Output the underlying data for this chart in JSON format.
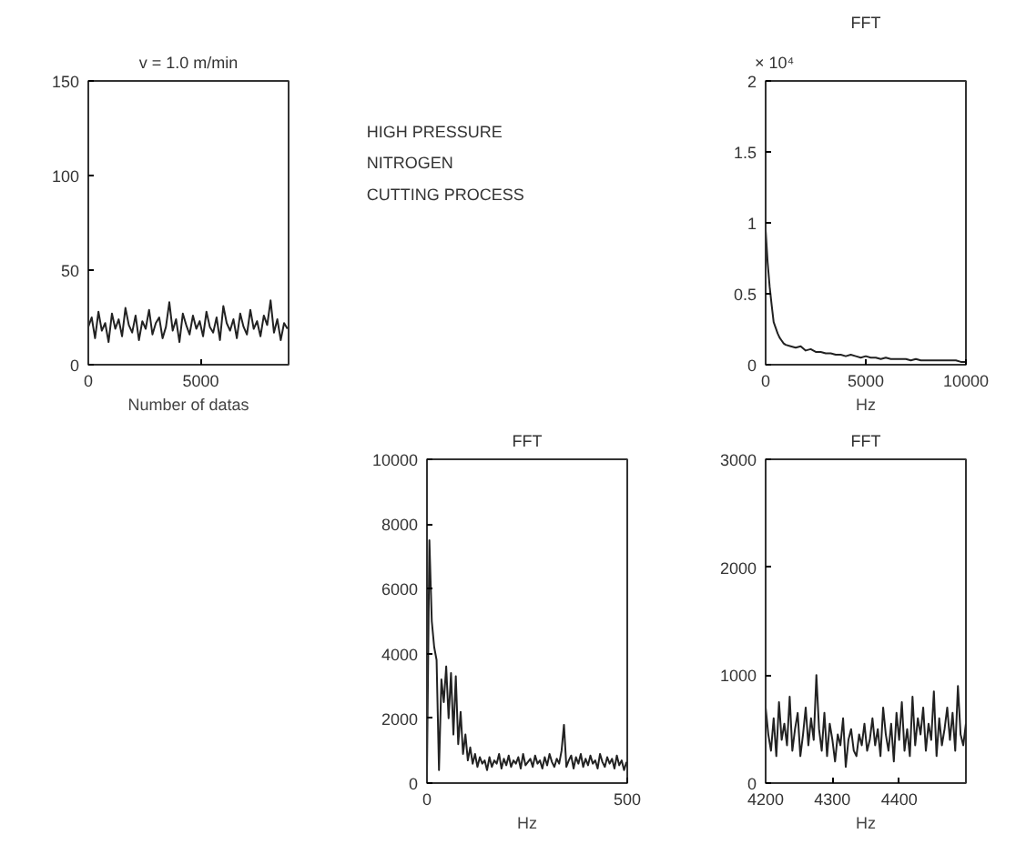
{
  "chart_data": [
    {
      "type": "line",
      "title": "v = 1.0 m/min",
      "xlabel": "Number of datas",
      "color": "#222222",
      "xlim": [
        0,
        8900
      ],
      "xticks": [
        0,
        5000
      ],
      "ylim": [
        0,
        150
      ],
      "yticks": [
        0,
        50,
        100,
        150
      ],
      "x": [
        0,
        150,
        300,
        450,
        600,
        750,
        900,
        1050,
        1200,
        1350,
        1500,
        1650,
        1800,
        1950,
        2100,
        2250,
        2400,
        2550,
        2700,
        2850,
        3000,
        3150,
        3300,
        3450,
        3600,
        3750,
        3900,
        4050,
        4200,
        4350,
        4500,
        4650,
        4800,
        4950,
        5100,
        5250,
        5400,
        5550,
        5700,
        5850,
        6000,
        6150,
        6300,
        6450,
        6600,
        6750,
        6900,
        7050,
        7200,
        7350,
        7500,
        7650,
        7800,
        7950,
        8100,
        8250,
        8400,
        8550,
        8700,
        8850
      ],
      "values": [
        20,
        25,
        14,
        28,
        18,
        22,
        12,
        27,
        19,
        24,
        15,
        30,
        21,
        17,
        26,
        13,
        23,
        19,
        29,
        16,
        22,
        25,
        14,
        20,
        33,
        18,
        24,
        12,
        27,
        21,
        16,
        26,
        19,
        23,
        15,
        28,
        20,
        17,
        25,
        13,
        31,
        22,
        18,
        24,
        14,
        27,
        20,
        16,
        29,
        19,
        23,
        15,
        26,
        21,
        34,
        17,
        24,
        13,
        22,
        19
      ]
    },
    {
      "type": "other",
      "annotations": [
        "HIGH PRESSURE",
        "NITROGEN",
        "CUTTING PROCESS"
      ]
    },
    {
      "type": "line",
      "title": "FFT",
      "xlabel": "Hz",
      "annotations": [
        "× 10⁴"
      ],
      "color": "#222222",
      "xlim": [
        0,
        10000
      ],
      "xticks": [
        0,
        5000,
        10000
      ],
      "ylim": [
        0,
        2
      ],
      "yticks": [
        0,
        0.5,
        1,
        1.5,
        2
      ],
      "x": [
        0,
        100,
        200,
        300,
        400,
        500,
        600,
        700,
        800,
        900,
        1000,
        1250,
        1500,
        1750,
        2000,
        2250,
        2500,
        2750,
        3000,
        3250,
        3500,
        3750,
        4000,
        4250,
        4500,
        4750,
        5000,
        5250,
        5500,
        5750,
        6000,
        6250,
        6500,
        6750,
        7000,
        7250,
        7500,
        7750,
        8000,
        8250,
        8500,
        8750,
        9000,
        9250,
        9500,
        9750,
        10000
      ],
      "values": [
        0.95,
        0.72,
        0.55,
        0.42,
        0.3,
        0.26,
        0.22,
        0.19,
        0.17,
        0.15,
        0.14,
        0.13,
        0.12,
        0.13,
        0.1,
        0.11,
        0.09,
        0.09,
        0.08,
        0.08,
        0.07,
        0.07,
        0.06,
        0.07,
        0.06,
        0.05,
        0.06,
        0.05,
        0.05,
        0.04,
        0.05,
        0.04,
        0.04,
        0.04,
        0.04,
        0.03,
        0.04,
        0.03,
        0.03,
        0.03,
        0.03,
        0.03,
        0.03,
        0.03,
        0.03,
        0.02,
        0.02
      ]
    },
    {
      "type": "line",
      "title": "FFT",
      "xlabel": "Hz",
      "color": "#222222",
      "xlim": [
        0,
        500
      ],
      "xticks": [
        0,
        500
      ],
      "ylim": [
        0,
        10000
      ],
      "yticks": [
        0,
        2000,
        4000,
        6000,
        8000,
        10000
      ],
      "x": [
        0,
        6,
        12,
        18,
        24,
        30,
        36,
        42,
        48,
        54,
        60,
        66,
        72,
        78,
        84,
        90,
        96,
        102,
        108,
        114,
        120,
        126,
        132,
        138,
        144,
        150,
        156,
        162,
        168,
        174,
        180,
        186,
        192,
        198,
        204,
        210,
        216,
        222,
        228,
        234,
        240,
        246,
        252,
        258,
        264,
        270,
        276,
        282,
        288,
        294,
        300,
        306,
        312,
        318,
        324,
        330,
        336,
        342,
        348,
        354,
        360,
        366,
        372,
        378,
        384,
        390,
        396,
        402,
        408,
        414,
        420,
        426,
        432,
        438,
        444,
        450,
        456,
        462,
        468,
        474,
        480,
        486,
        492,
        498
      ],
      "values": [
        300,
        7500,
        5000,
        4200,
        3800,
        400,
        3200,
        2500,
        3600,
        2000,
        3400,
        1500,
        3300,
        1200,
        2200,
        900,
        1500,
        700,
        1100,
        600,
        900,
        500,
        800,
        600,
        700,
        400,
        800,
        500,
        700,
        600,
        900,
        450,
        750,
        550,
        850,
        500,
        700,
        600,
        800,
        450,
        900,
        550,
        650,
        750,
        500,
        850,
        600,
        700,
        450,
        800,
        550,
        900,
        650,
        500,
        750,
        600,
        1000,
        1800,
        500,
        700,
        850,
        450,
        800,
        600,
        900,
        500,
        750,
        550,
        850,
        600,
        700,
        450,
        900,
        650,
        500,
        800,
        600,
        750,
        450,
        850,
        550,
        700,
        400,
        650
      ]
    },
    {
      "type": "line",
      "title": "FFT",
      "xlabel": "Hz",
      "color": "#222222",
      "xlim": [
        4200,
        4500
      ],
      "xticks": [
        4200,
        4300,
        4400
      ],
      "ylim": [
        0,
        3000
      ],
      "yticks": [
        0,
        1000,
        2000,
        3000
      ],
      "x": [
        4200,
        4204,
        4208,
        4212,
        4216,
        4220,
        4224,
        4228,
        4232,
        4236,
        4240,
        4244,
        4248,
        4252,
        4256,
        4260,
        4264,
        4268,
        4272,
        4276,
        4280,
        4284,
        4288,
        4292,
        4296,
        4300,
        4304,
        4308,
        4312,
        4316,
        4320,
        4324,
        4328,
        4332,
        4336,
        4340,
        4344,
        4348,
        4352,
        4356,
        4360,
        4364,
        4368,
        4372,
        4376,
        4380,
        4384,
        4388,
        4392,
        4396,
        4400,
        4404,
        4408,
        4412,
        4416,
        4420,
        4424,
        4428,
        4432,
        4436,
        4440,
        4444,
        4448,
        4452,
        4456,
        4460,
        4464,
        4468,
        4472,
        4476,
        4480,
        4484,
        4488,
        4492,
        4496,
        4500
      ],
      "values": [
        700,
        450,
        300,
        600,
        250,
        750,
        400,
        550,
        350,
        800,
        300,
        500,
        650,
        250,
        450,
        700,
        350,
        600,
        400,
        1000,
        500,
        300,
        650,
        250,
        550,
        400,
        200,
        450,
        350,
        600,
        150,
        400,
        500,
        300,
        250,
        450,
        350,
        550,
        300,
        400,
        600,
        350,
        500,
        250,
        700,
        450,
        300,
        550,
        200,
        650,
        400,
        750,
        300,
        500,
        250,
        800,
        350,
        600,
        450,
        700,
        300,
        550,
        400,
        850,
        250,
        600,
        350,
        500,
        700,
        400,
        650,
        300,
        900,
        450,
        350,
        550
      ]
    }
  ]
}
